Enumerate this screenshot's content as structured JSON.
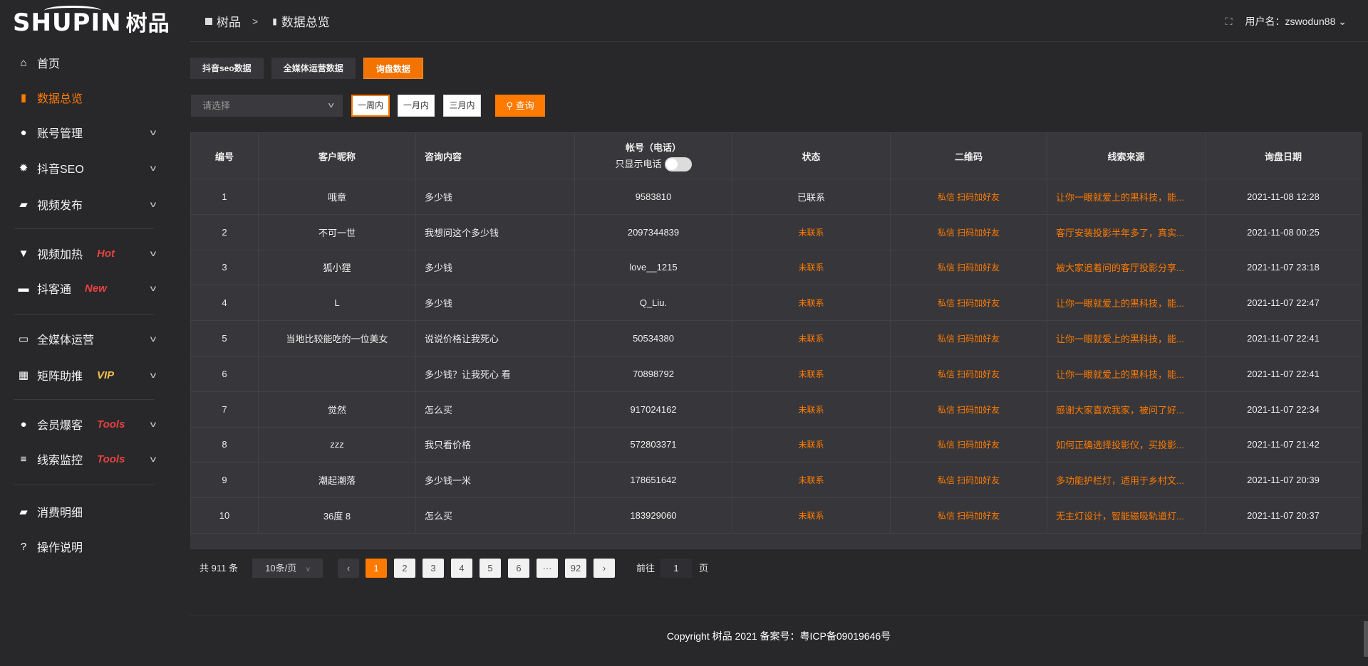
{
  "logo": {
    "text": "SHUPIN",
    "cn": "树品"
  },
  "sidebar": {
    "items": [
      {
        "label": "首页",
        "icon": "home-icon"
      },
      {
        "label": "数据总览",
        "icon": "bar-chart-icon",
        "active": true
      },
      {
        "label": "账号管理",
        "icon": "user-icon",
        "chevron": true
      },
      {
        "label": "抖音SEO",
        "icon": "gear-icon",
        "chevron": true
      },
      {
        "label": "视频发布",
        "icon": "video-camera-icon",
        "chevron": true
      },
      {
        "label": "视频加热",
        "icon": "flame-icon",
        "chevron": true,
        "tag": "Hot"
      },
      {
        "label": "抖客通",
        "icon": "chat-icon",
        "chevron": true,
        "tag": "New"
      },
      {
        "label": "全媒体运营",
        "icon": "monitor-icon",
        "chevron": true
      },
      {
        "label": "矩阵助推",
        "icon": "grid-icon",
        "chevron": true,
        "tag": "VIP"
      },
      {
        "label": "会员爆客",
        "icon": "user-icon",
        "chevron": true,
        "tag": "Tools"
      },
      {
        "label": "线索监控",
        "icon": "sliders-icon",
        "chevron": true,
        "tag": "Tools"
      },
      {
        "label": "消费明细",
        "icon": "wallet-icon"
      },
      {
        "label": "操作说明",
        "icon": "help-icon"
      }
    ]
  },
  "header": {
    "breadcrumb": [
      "树品",
      "数据总览"
    ],
    "separator": ">",
    "user_label": "用户名：zswodun88"
  },
  "tabs": [
    "抖音seo数据",
    "全媒体运营数据",
    "询盘数据"
  ],
  "filter": {
    "select_placeholder": "请选择",
    "ranges": [
      "一周内",
      "一月内",
      "三月内"
    ],
    "query": "查询"
  },
  "table": {
    "columns": [
      "编号",
      "客户昵称",
      "咨询内容",
      "帐号（电话）",
      "状态",
      "二维码",
      "线索来源",
      "询盘日期"
    ],
    "phone_toggle_label": "只显示电话",
    "qr_text": "私信 扫码加好友",
    "rows": [
      [
        "1",
        "哦章",
        "多少钱",
        "9583810",
        "已联系",
        "让你一眼就爱上的黑科技，能...",
        "2021-11-08 12:28"
      ],
      [
        "2",
        "不可一世",
        "我想问这个多少钱",
        "2097344839",
        "未联系",
        "客厅安装投影半年多了，真实...",
        "2021-11-08 00:25"
      ],
      [
        "3",
        "狐小狸",
        "多少钱",
        "love__1215",
        "未联系",
        "被大家追着问的客厅投影分享...",
        "2021-11-07 23:18"
      ],
      [
        "4",
        "L",
        "多少钱",
        "Q_Liu.",
        "未联系",
        "让你一眼就爱上的黑科技，能...",
        "2021-11-07 22:47"
      ],
      [
        "5",
        "当地比较能吃的一位美女",
        "说说价格让我死心",
        "50534380",
        "未联系",
        "让你一眼就爱上的黑科技，能...",
        "2021-11-07 22:41"
      ],
      [
        "6",
        "",
        "多少钱？让我死心 看",
        "70898792",
        "未联系",
        "让你一眼就爱上的黑科技，能...",
        "2021-11-07 22:41"
      ],
      [
        "7",
        "觉然",
        "怎么买",
        "917024162",
        "未联系",
        "感谢大家喜欢我家，被问了好...",
        "2021-11-07 22:34"
      ],
      [
        "8",
        "zzz",
        "我只看价格",
        "572803371",
        "未联系",
        "如何正确选择投影仪，买投影...",
        "2021-11-07 21:42"
      ],
      [
        "9",
        "潮起潮落",
        "多少钱一米",
        "178651642",
        "未联系",
        "多功能护栏灯，适用于乡村文...",
        "2021-11-07 20:39"
      ],
      [
        "10",
        "36度 8",
        "怎么买",
        "183929060",
        "未联系",
        "无主灯设计，智能磁吸轨道灯...",
        "2021-11-07 20:37"
      ]
    ]
  },
  "pagination": {
    "total": "共 911 条",
    "page_size": "10条/页",
    "pages": [
      "1",
      "2",
      "3",
      "4",
      "5",
      "6",
      "···",
      "92"
    ],
    "current": "1",
    "goto_label": "前往",
    "goto_value": "1",
    "goto_suffix": "页"
  },
  "footer": {
    "copyright": "Copyright 树品 2021 备案号：粤ICP备09019646号"
  },
  "colors": {
    "accent": "#ff7a00",
    "hot": "#e8423f",
    "vip": "#f2c14e"
  }
}
